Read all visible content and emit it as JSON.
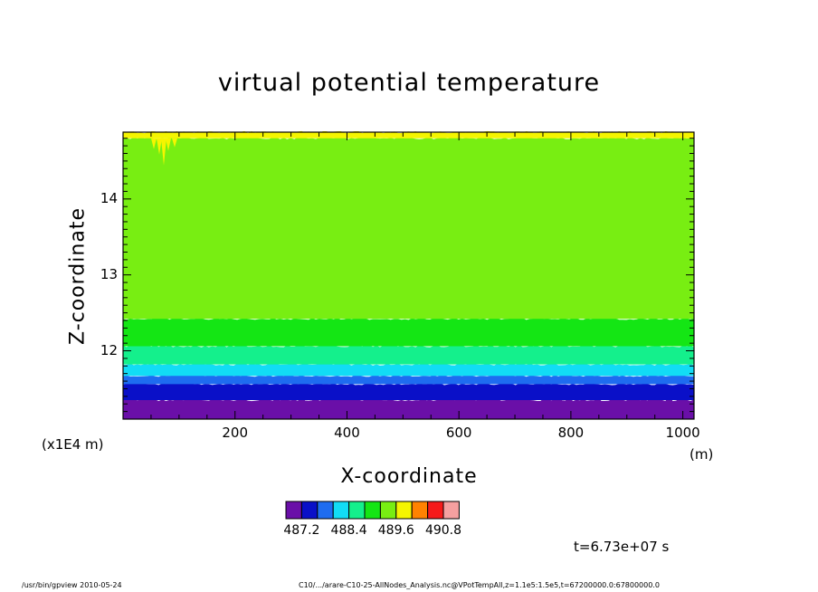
{
  "chart_data": {
    "type": "heatmap",
    "title": "virtual potential temperature",
    "xlabel": "X-coordinate",
    "ylabel": "Z-coordinate",
    "x_unit": "(m)",
    "y_scale_note": "(x1E4 m)",
    "xlim": [
      0,
      1020
    ],
    "ylim": [
      11.1,
      14.88
    ],
    "x_ticks": [
      200,
      400,
      600,
      800,
      1000
    ],
    "y_ticks": [
      12,
      13,
      14
    ],
    "x_tick_labels": [
      "200",
      "400",
      "600",
      "800",
      "1000"
    ],
    "y_tick_labels": [
      "12",
      "13",
      "14"
    ],
    "colorbar": {
      "levels": [
        487.2,
        487.6,
        488.0,
        488.4,
        488.8,
        489.2,
        489.6,
        490.0,
        490.4,
        490.8
      ],
      "labels": [
        "487.2",
        "488.4",
        "489.6",
        "490.8"
      ],
      "colors": [
        "#6a0fa8",
        "#0a10c8",
        "#1e6cf0",
        "#12dcf5",
        "#14f08c",
        "#14e614",
        "#78ee12",
        "#f5f500",
        "#ff8200",
        "#f51a1a",
        "#f5a0a0"
      ]
    },
    "bands": [
      {
        "z_bottom": 11.1,
        "z_top": 11.35,
        "color_index": 0
      },
      {
        "z_bottom": 11.35,
        "z_top": 11.56,
        "color_index": 1
      },
      {
        "z_bottom": 11.56,
        "z_top": 11.67,
        "color_index": 2
      },
      {
        "z_bottom": 11.67,
        "z_top": 11.82,
        "color_index": 3
      },
      {
        "z_bottom": 11.82,
        "z_top": 12.06,
        "color_index": 4
      },
      {
        "z_bottom": 12.06,
        "z_top": 12.42,
        "color_index": 5
      },
      {
        "z_bottom": 12.42,
        "z_top": 14.8,
        "color_index": 6
      },
      {
        "z_bottom": 14.8,
        "z_top": 14.88,
        "color_index": 7
      }
    ]
  },
  "annotations": {
    "timestamp": "t=6.73e+07 s"
  },
  "footer": {
    "left": "/usr/bin/gpview   2010-05-24",
    "right": "C10/.../arare-C10-25-AllNodes_Analysis.nc@VPotTempAll,z=1.1e5:1.5e5,t=67200000.0:67800000.0"
  }
}
